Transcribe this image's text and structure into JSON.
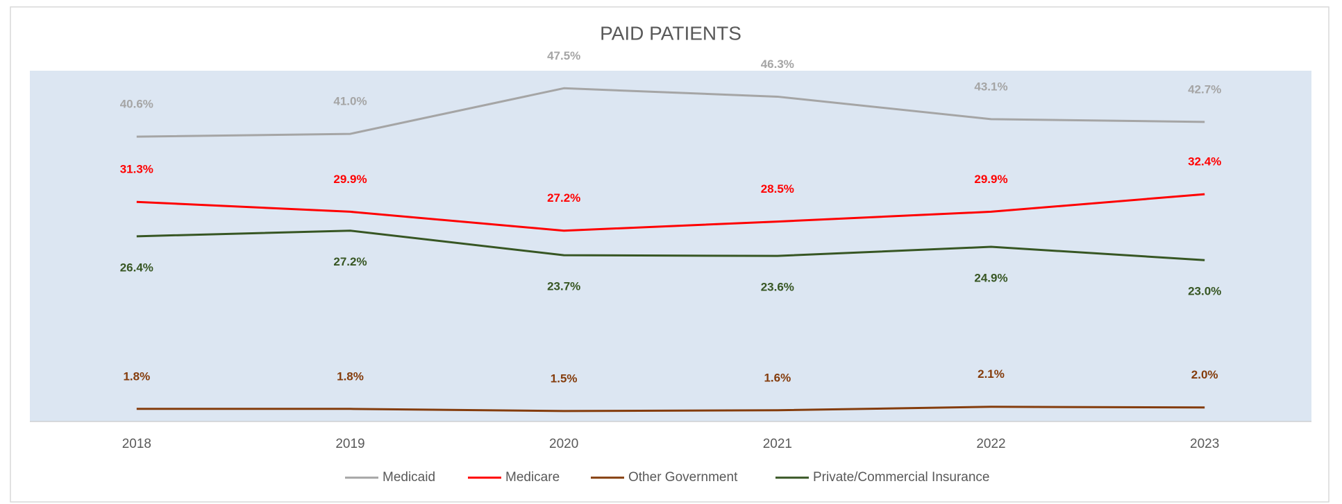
{
  "chart_data": {
    "type": "line",
    "title": "PAID PATIENTS",
    "categories": [
      "2018",
      "2019",
      "2020",
      "2021",
      "2022",
      "2023"
    ],
    "ylim": [
      0,
      50
    ],
    "series": [
      {
        "name": "Medicaid",
        "color": "#a5a5a5",
        "values": [
          40.6,
          41.0,
          47.5,
          46.3,
          43.1,
          42.7
        ],
        "value_labels": [
          "40.6%",
          "41.0%",
          "47.5%",
          "46.3%",
          "43.1%",
          "42.7%"
        ],
        "label_position": "above"
      },
      {
        "name": "Medicare",
        "color": "#ff0000",
        "values": [
          31.3,
          29.9,
          27.2,
          28.5,
          29.9,
          32.4
        ],
        "value_labels": [
          "31.3%",
          "29.9%",
          "27.2%",
          "28.5%",
          "29.9%",
          "32.4%"
        ],
        "label_position": "above"
      },
      {
        "name": "Other Government",
        "color": "#843c0c",
        "values": [
          1.8,
          1.8,
          1.5,
          1.6,
          2.1,
          2.0
        ],
        "value_labels": [
          "1.8%",
          "1.8%",
          "1.5%",
          "1.6%",
          "2.1%",
          "2.0%"
        ],
        "label_position": "above"
      },
      {
        "name": "Private/Commercial Insurance",
        "color": "#375623",
        "values": [
          26.4,
          27.2,
          23.7,
          23.6,
          24.9,
          23.0
        ],
        "value_labels": [
          "26.4%",
          "27.2%",
          "23.7%",
          "23.6%",
          "24.9%",
          "23.0%"
        ],
        "label_position": "below"
      }
    ]
  }
}
